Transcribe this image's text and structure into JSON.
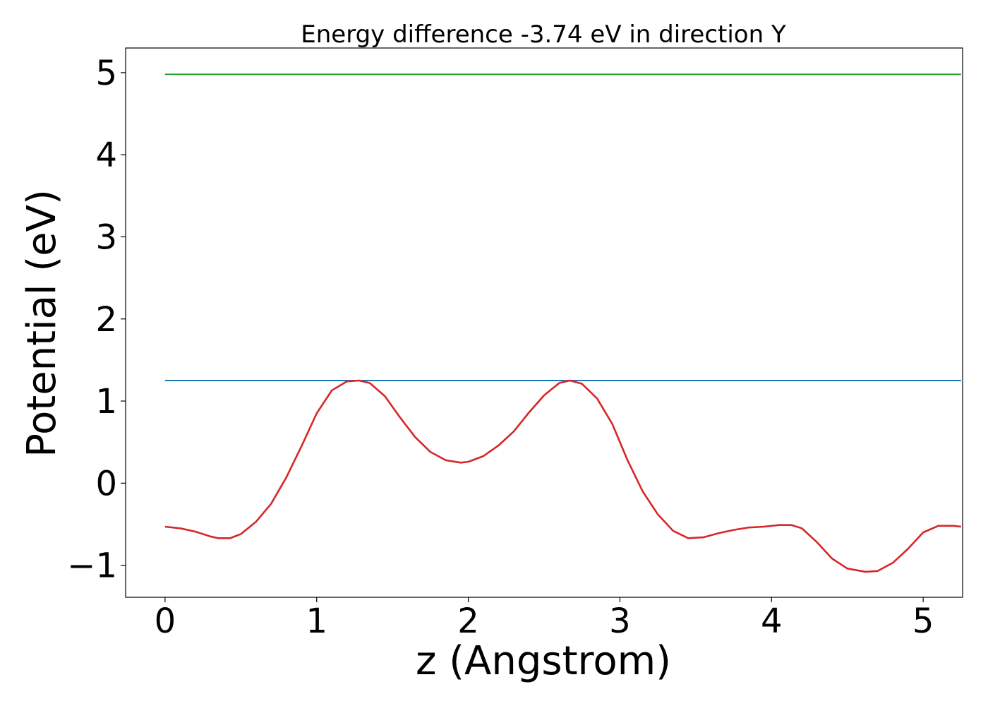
{
  "chart_data": {
    "type": "line",
    "title": "Energy difference -3.74 eV in direction Y",
    "xlabel": "z (Angstrom)",
    "ylabel": "Potential (eV)",
    "xlim": [
      -0.26,
      5.26
    ],
    "ylim": [
      -1.39,
      5.3
    ],
    "xticks": [
      0,
      1,
      2,
      3,
      4,
      5
    ],
    "xtick_labels": [
      "0",
      "1",
      "2",
      "3",
      "4",
      "5"
    ],
    "yticks": [
      -1,
      0,
      1,
      2,
      3,
      4,
      5
    ],
    "ytick_labels": [
      "−1",
      "0",
      "1",
      "2",
      "3",
      "4",
      "5"
    ],
    "grid": false,
    "series": [
      {
        "color": "#2ca02c",
        "x": [
          0,
          5.25
        ],
        "y": [
          4.98,
          4.98
        ]
      },
      {
        "color": "#1f77b4",
        "x": [
          0,
          5.25
        ],
        "y": [
          1.25,
          1.25
        ]
      },
      {
        "color": "#d62728",
        "x": [
          0,
          0.1,
          0.2,
          0.3,
          0.35,
          0.43,
          0.5,
          0.6,
          0.7,
          0.8,
          0.9,
          1.0,
          1.1,
          1.2,
          1.28,
          1.35,
          1.45,
          1.55,
          1.65,
          1.75,
          1.85,
          1.95,
          2.0,
          2.1,
          2.2,
          2.3,
          2.4,
          2.5,
          2.6,
          2.67,
          2.75,
          2.85,
          2.95,
          3.05,
          3.15,
          3.25,
          3.35,
          3.45,
          3.55,
          3.65,
          3.75,
          3.85,
          3.95,
          4.05,
          4.13,
          4.2,
          4.3,
          4.4,
          4.5,
          4.62,
          4.7,
          4.8,
          4.9,
          5.0,
          5.1,
          5.2,
          5.25
        ],
        "y": [
          -0.53,
          -0.55,
          -0.59,
          -0.65,
          -0.67,
          -0.67,
          -0.62,
          -0.47,
          -0.25,
          0.07,
          0.45,
          0.85,
          1.13,
          1.24,
          1.25,
          1.22,
          1.06,
          0.8,
          0.56,
          0.38,
          0.28,
          0.25,
          0.26,
          0.33,
          0.46,
          0.63,
          0.86,
          1.07,
          1.22,
          1.25,
          1.21,
          1.03,
          0.72,
          0.28,
          -0.1,
          -0.38,
          -0.58,
          -0.67,
          -0.66,
          -0.61,
          -0.57,
          -0.54,
          -0.53,
          -0.51,
          -0.51,
          -0.55,
          -0.72,
          -0.92,
          -1.04,
          -1.08,
          -1.07,
          -0.97,
          -0.8,
          -0.6,
          -0.52,
          -0.52,
          -0.53
        ]
      }
    ]
  }
}
